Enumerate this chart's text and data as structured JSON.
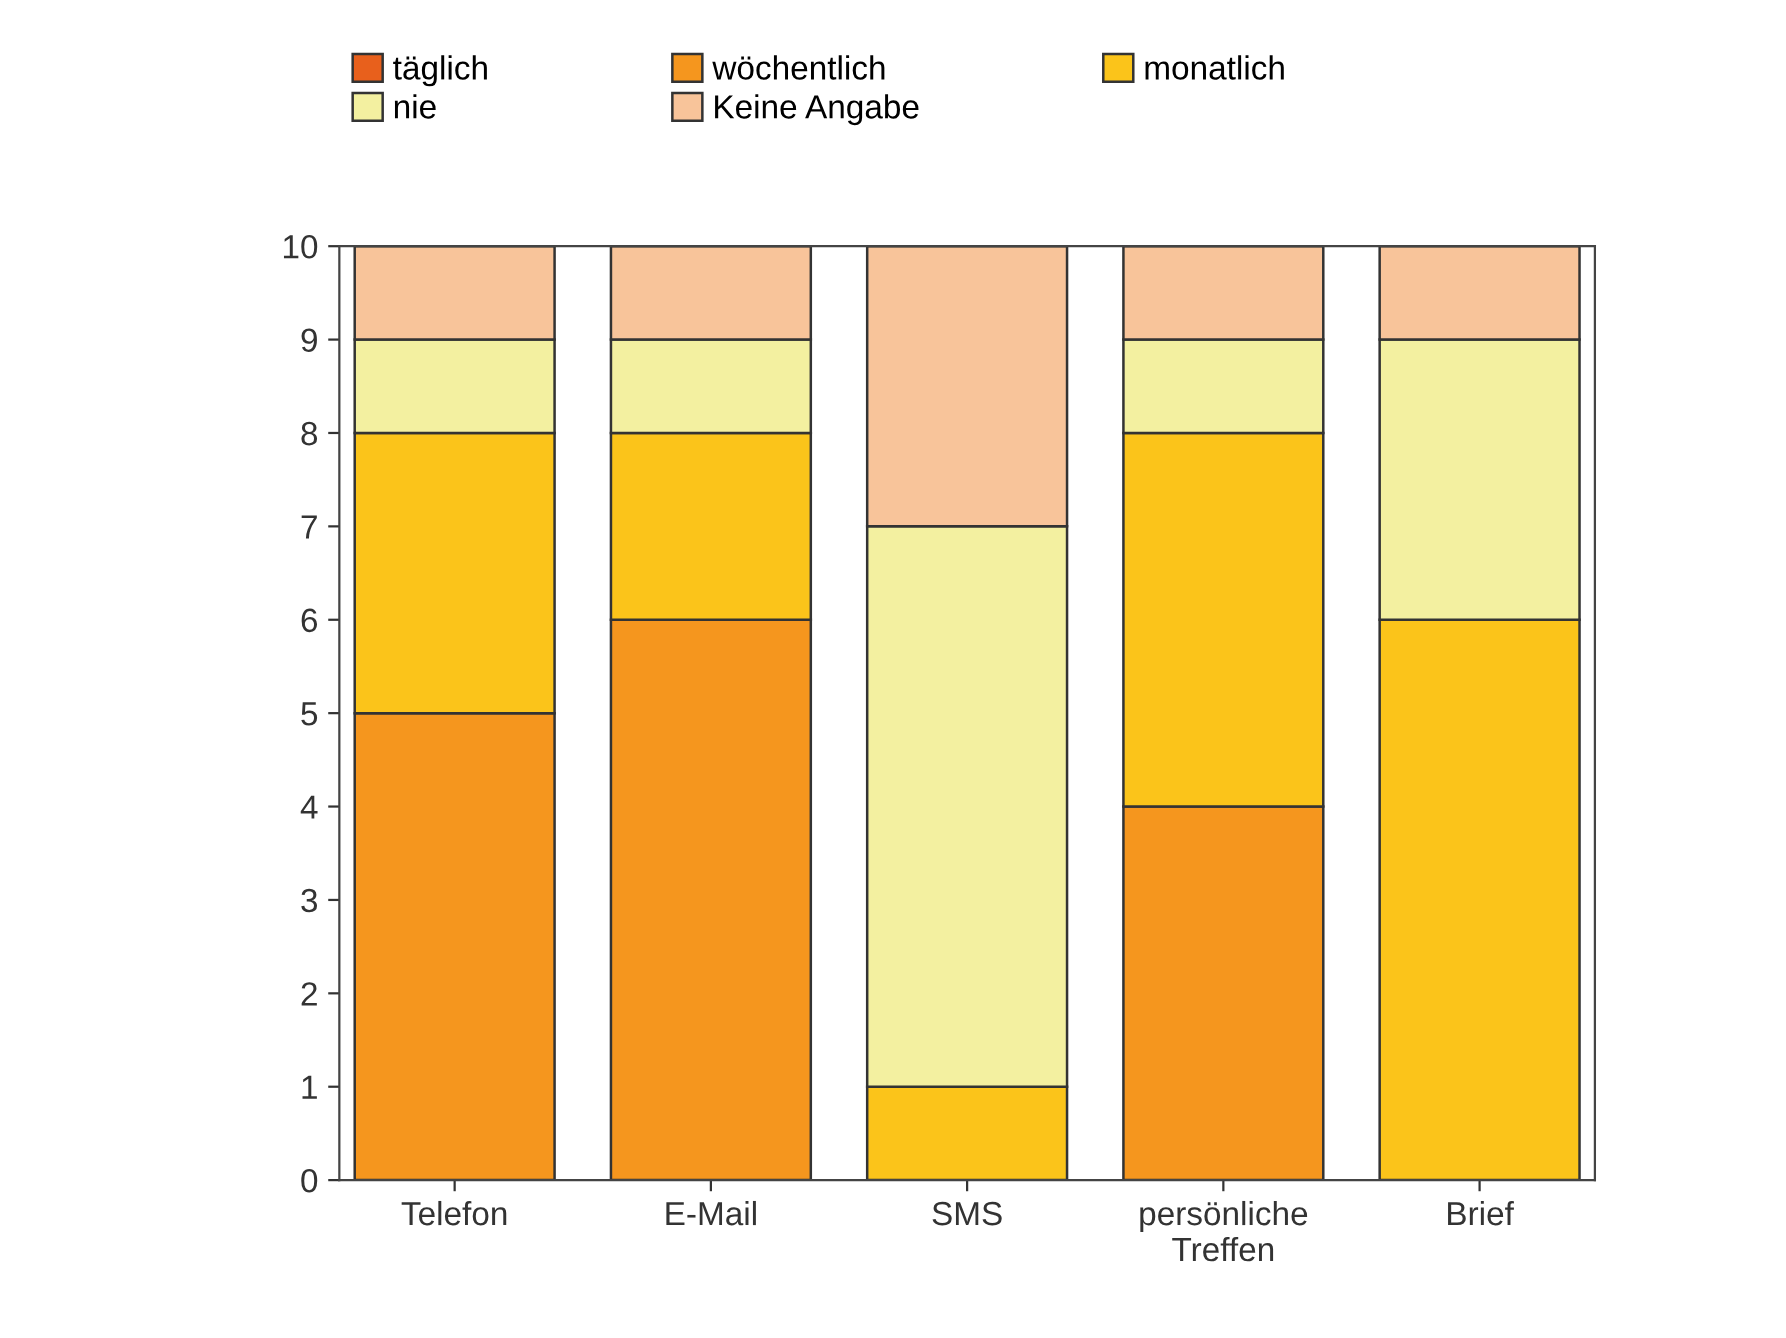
{
  "chart_data": {
    "type": "bar",
    "stacked": true,
    "categories": [
      "Telefon",
      "E-Mail",
      "SMS",
      "persönliche\nTreffen",
      "Brief"
    ],
    "series": [
      {
        "name": "täglich",
        "color": "#e8601c",
        "values": [
          0,
          0,
          0,
          0,
          0
        ]
      },
      {
        "name": "wöchentlich",
        "color": "#f5961e",
        "values": [
          5,
          6,
          0,
          4,
          0
        ]
      },
      {
        "name": "monatlich",
        "color": "#fbc41a",
        "values": [
          3,
          2,
          1,
          4,
          6
        ]
      },
      {
        "name": "nie",
        "color": "#f3f0a0",
        "values": [
          1,
          1,
          6,
          1,
          3
        ]
      },
      {
        "name": "Keine Angabe",
        "color": "#f8c49a",
        "values": [
          1,
          1,
          3,
          1,
          1
        ]
      }
    ],
    "ylim": [
      0,
      10
    ],
    "yticks": [
      0,
      1,
      2,
      3,
      4,
      5,
      6,
      7,
      8,
      9,
      10
    ],
    "grid": false,
    "legend": "top"
  }
}
